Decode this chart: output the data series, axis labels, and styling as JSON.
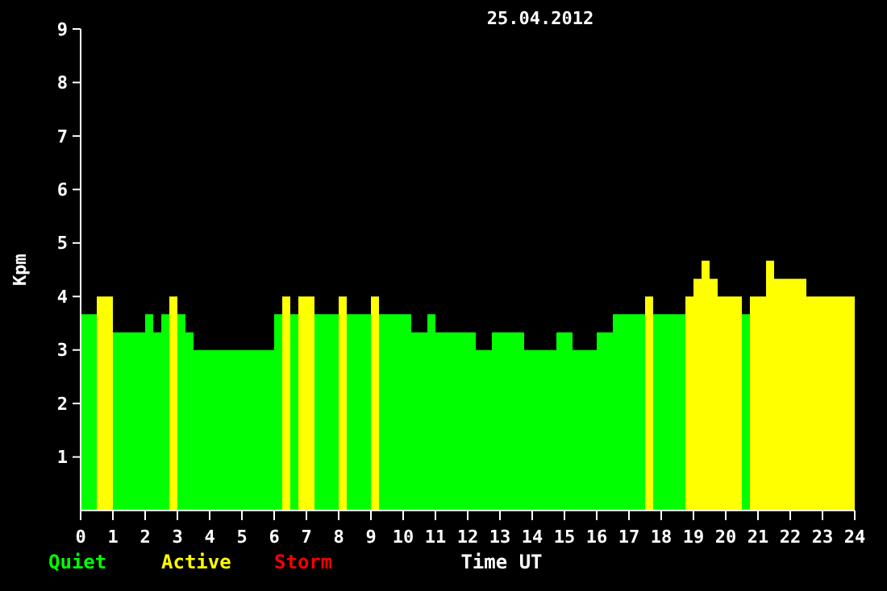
{
  "chart_data": {
    "type": "area",
    "title": "25.04.2012",
    "xlabel": "Time UT",
    "ylabel": "Kpm",
    "x": [
      0.125,
      0.375,
      0.625,
      0.875,
      1.125,
      1.375,
      1.625,
      1.875,
      2.125,
      2.375,
      2.625,
      2.875,
      3.125,
      3.375,
      3.625,
      3.875,
      4.125,
      4.375,
      4.625,
      4.875,
      5.125,
      5.375,
      5.625,
      5.875,
      6.125,
      6.375,
      6.625,
      6.875,
      7.125,
      7.375,
      7.625,
      7.875,
      8.125,
      8.375,
      8.625,
      8.875,
      9.125,
      9.375,
      9.625,
      9.875,
      10.125,
      10.375,
      10.625,
      10.875,
      11.125,
      11.375,
      11.625,
      11.875,
      12.125,
      12.375,
      12.625,
      12.875,
      13.125,
      13.375,
      13.625,
      13.875,
      14.125,
      14.375,
      14.625,
      14.875,
      15.125,
      15.375,
      15.625,
      15.875,
      16.125,
      16.375,
      16.625,
      16.875,
      17.125,
      17.375,
      17.625,
      17.875,
      18.125,
      18.375,
      18.625,
      18.875,
      19.125,
      19.375,
      19.625,
      19.875,
      20.125,
      20.375,
      20.625,
      20.875,
      21.125,
      21.375,
      21.625,
      21.875,
      22.125,
      22.375,
      22.625,
      22.875,
      23.125,
      23.375,
      23.625,
      23.875
    ],
    "series": [
      {
        "name": "Quiet",
        "color": "#00ff00",
        "values": [
          3.67,
          3.67,
          null,
          null,
          3.33,
          3.33,
          3.33,
          3.33,
          3.67,
          3.33,
          3.67,
          null,
          3.67,
          3.33,
          3,
          3,
          3,
          3,
          3,
          3,
          3,
          3,
          3,
          3,
          3.67,
          null,
          3.67,
          null,
          null,
          3.67,
          3.67,
          3.67,
          null,
          3.67,
          3.67,
          3.67,
          null,
          3.67,
          3.67,
          3.67,
          3.67,
          3.33,
          3.33,
          3.67,
          3.33,
          3.33,
          3.33,
          3.33,
          3.33,
          3,
          3,
          3.33,
          3.33,
          3.33,
          3.33,
          3,
          3,
          3,
          3,
          3.33,
          3.33,
          3,
          3,
          3,
          3.33,
          3.33,
          3.67,
          3.67,
          3.67,
          3.67,
          null,
          3.67,
          3.67,
          3.67,
          3.67,
          null,
          null,
          null,
          null,
          null,
          null,
          null,
          3.67,
          null,
          null,
          null,
          null,
          null,
          null,
          null,
          null,
          null,
          null,
          null,
          null,
          null
        ]
      },
      {
        "name": "Active",
        "color": "#ffff00",
        "values": [
          null,
          null,
          4,
          4,
          null,
          null,
          null,
          null,
          null,
          null,
          null,
          4,
          null,
          null,
          null,
          null,
          null,
          null,
          null,
          null,
          null,
          null,
          null,
          null,
          null,
          4,
          null,
          4,
          4,
          null,
          null,
          null,
          4,
          null,
          null,
          null,
          4,
          null,
          null,
          null,
          null,
          null,
          null,
          null,
          null,
          null,
          null,
          null,
          null,
          null,
          null,
          null,
          null,
          null,
          null,
          null,
          null,
          null,
          null,
          null,
          null,
          null,
          null,
          null,
          null,
          null,
          null,
          null,
          null,
          null,
          4,
          null,
          null,
          null,
          null,
          4,
          4.33,
          4.67,
          4.33,
          4,
          4,
          4,
          null,
          4,
          4,
          4.67,
          4.33,
          4.33,
          4.33,
          4.33,
          4,
          4,
          4,
          4,
          4,
          4
        ]
      },
      {
        "name": "Storm",
        "color": "#ff0000",
        "values": [
          null,
          null,
          null,
          null,
          null,
          null,
          null,
          null,
          null,
          null,
          null,
          null,
          null,
          null,
          null,
          null,
          null,
          null,
          null,
          null,
          null,
          null,
          null,
          null,
          null,
          null,
          null,
          null,
          null,
          null,
          null,
          null,
          null,
          null,
          null,
          null,
          null,
          null,
          null,
          null,
          null,
          null,
          null,
          null,
          null,
          null,
          null,
          null,
          null,
          null,
          null,
          null,
          null,
          null,
          null,
          null,
          null,
          null,
          null,
          null,
          null,
          null,
          null,
          null,
          null,
          null,
          null,
          null,
          null,
          null,
          null,
          null,
          null,
          null,
          null,
          null,
          null,
          null,
          null,
          null,
          null,
          null,
          null,
          null,
          null,
          null,
          null,
          null,
          null,
          null,
          null,
          null,
          null,
          null,
          null,
          null
        ]
      }
    ],
    "xlim": [
      0,
      24
    ],
    "xticks": [
      0,
      1,
      2,
      3,
      4,
      5,
      6,
      7,
      8,
      9,
      10,
      11,
      12,
      13,
      14,
      15,
      16,
      17,
      18,
      19,
      20,
      21,
      22,
      23,
      24
    ],
    "ylim": [
      0,
      9
    ],
    "yticks": [
      1,
      2,
      3,
      4,
      5,
      6,
      7,
      8,
      9
    ],
    "legend": "bottom left",
    "grid": false
  }
}
